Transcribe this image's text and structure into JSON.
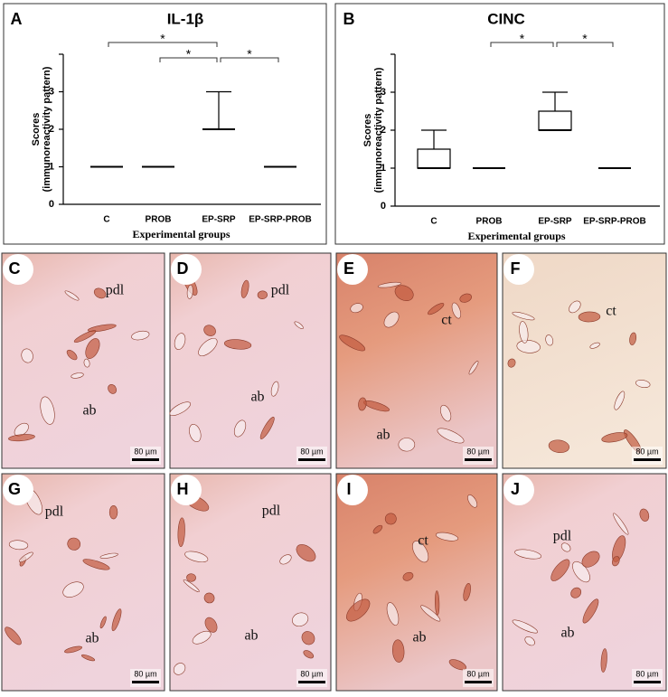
{
  "chart_data": [
    {
      "type": "box",
      "panel": "A",
      "title": "IL-1β",
      "ylabel": [
        "Scores",
        "(immunoreactivity pattern)"
      ],
      "xlabel": "Experimental groups",
      "categories": [
        "C",
        "PROB",
        "EP-SRP",
        "EP-SRP-PROB"
      ],
      "boxes": {
        "min": [
          1,
          1,
          2,
          1
        ],
        "q1": [
          1,
          1,
          2,
          1
        ],
        "median": [
          1,
          1,
          2,
          1
        ],
        "q3": [
          1,
          1,
          2,
          1
        ],
        "max": [
          1,
          1,
          3,
          1
        ]
      },
      "color": "#000000",
      "ylim": [
        0,
        4
      ],
      "yticks": [
        0,
        1,
        2,
        3
      ],
      "brackets": [
        {
          "from": "C",
          "to": "EP-SRP",
          "label": "*"
        },
        {
          "from": "PROB",
          "to": "EP-SRP",
          "label": "*"
        },
        {
          "from": "EP-SRP",
          "to": "EP-SRP-PROB",
          "label": "*"
        }
      ]
    },
    {
      "type": "box",
      "panel": "B",
      "title": "CINC",
      "ylabel": [
        "Scores",
        "(immunoreactivity pattern)"
      ],
      "xlabel": "Experimental groups",
      "categories": [
        "C",
        "PROB",
        "EP-SRP",
        "EP-SRP-PROB"
      ],
      "boxes": {
        "min": [
          1,
          1,
          2,
          1
        ],
        "q1": [
          1,
          1,
          2,
          1
        ],
        "median": [
          1,
          1,
          2,
          1
        ],
        "q3": [
          1.5,
          1,
          2.5,
          1
        ],
        "max": [
          2,
          1,
          3,
          1
        ]
      },
      "color": "#000000",
      "ylim": [
        0,
        4
      ],
      "yticks": [
        0,
        1,
        2,
        3
      ],
      "brackets": [
        {
          "from": "PROB",
          "to": "EP-SRP",
          "label": "*"
        },
        {
          "from": "EP-SRP",
          "to": "EP-SRP-PROB",
          "label": "*"
        }
      ]
    }
  ],
  "panels": [
    {
      "letter": "C",
      "labels": [
        "pdl",
        "ab"
      ],
      "scale_bar": "80 µm"
    },
    {
      "letter": "D",
      "labels": [
        "pdl",
        "ab"
      ],
      "scale_bar": "80 µm"
    },
    {
      "letter": "E",
      "labels": [
        "ct",
        "ab"
      ],
      "scale_bar": "80 µm"
    },
    {
      "letter": "F",
      "labels": [
        "ct"
      ],
      "scale_bar": "80 µm"
    },
    {
      "letter": "G",
      "labels": [
        "pdl",
        "ab"
      ],
      "scale_bar": "80 µm"
    },
    {
      "letter": "H",
      "labels": [
        "pdl",
        "ab"
      ],
      "scale_bar": "80 µm"
    },
    {
      "letter": "I",
      "labels": [
        "ct",
        "ab"
      ],
      "scale_bar": "80 µm"
    },
    {
      "letter": "J",
      "labels": [
        "pdl",
        "ab"
      ],
      "scale_bar": "80 µm"
    }
  ]
}
